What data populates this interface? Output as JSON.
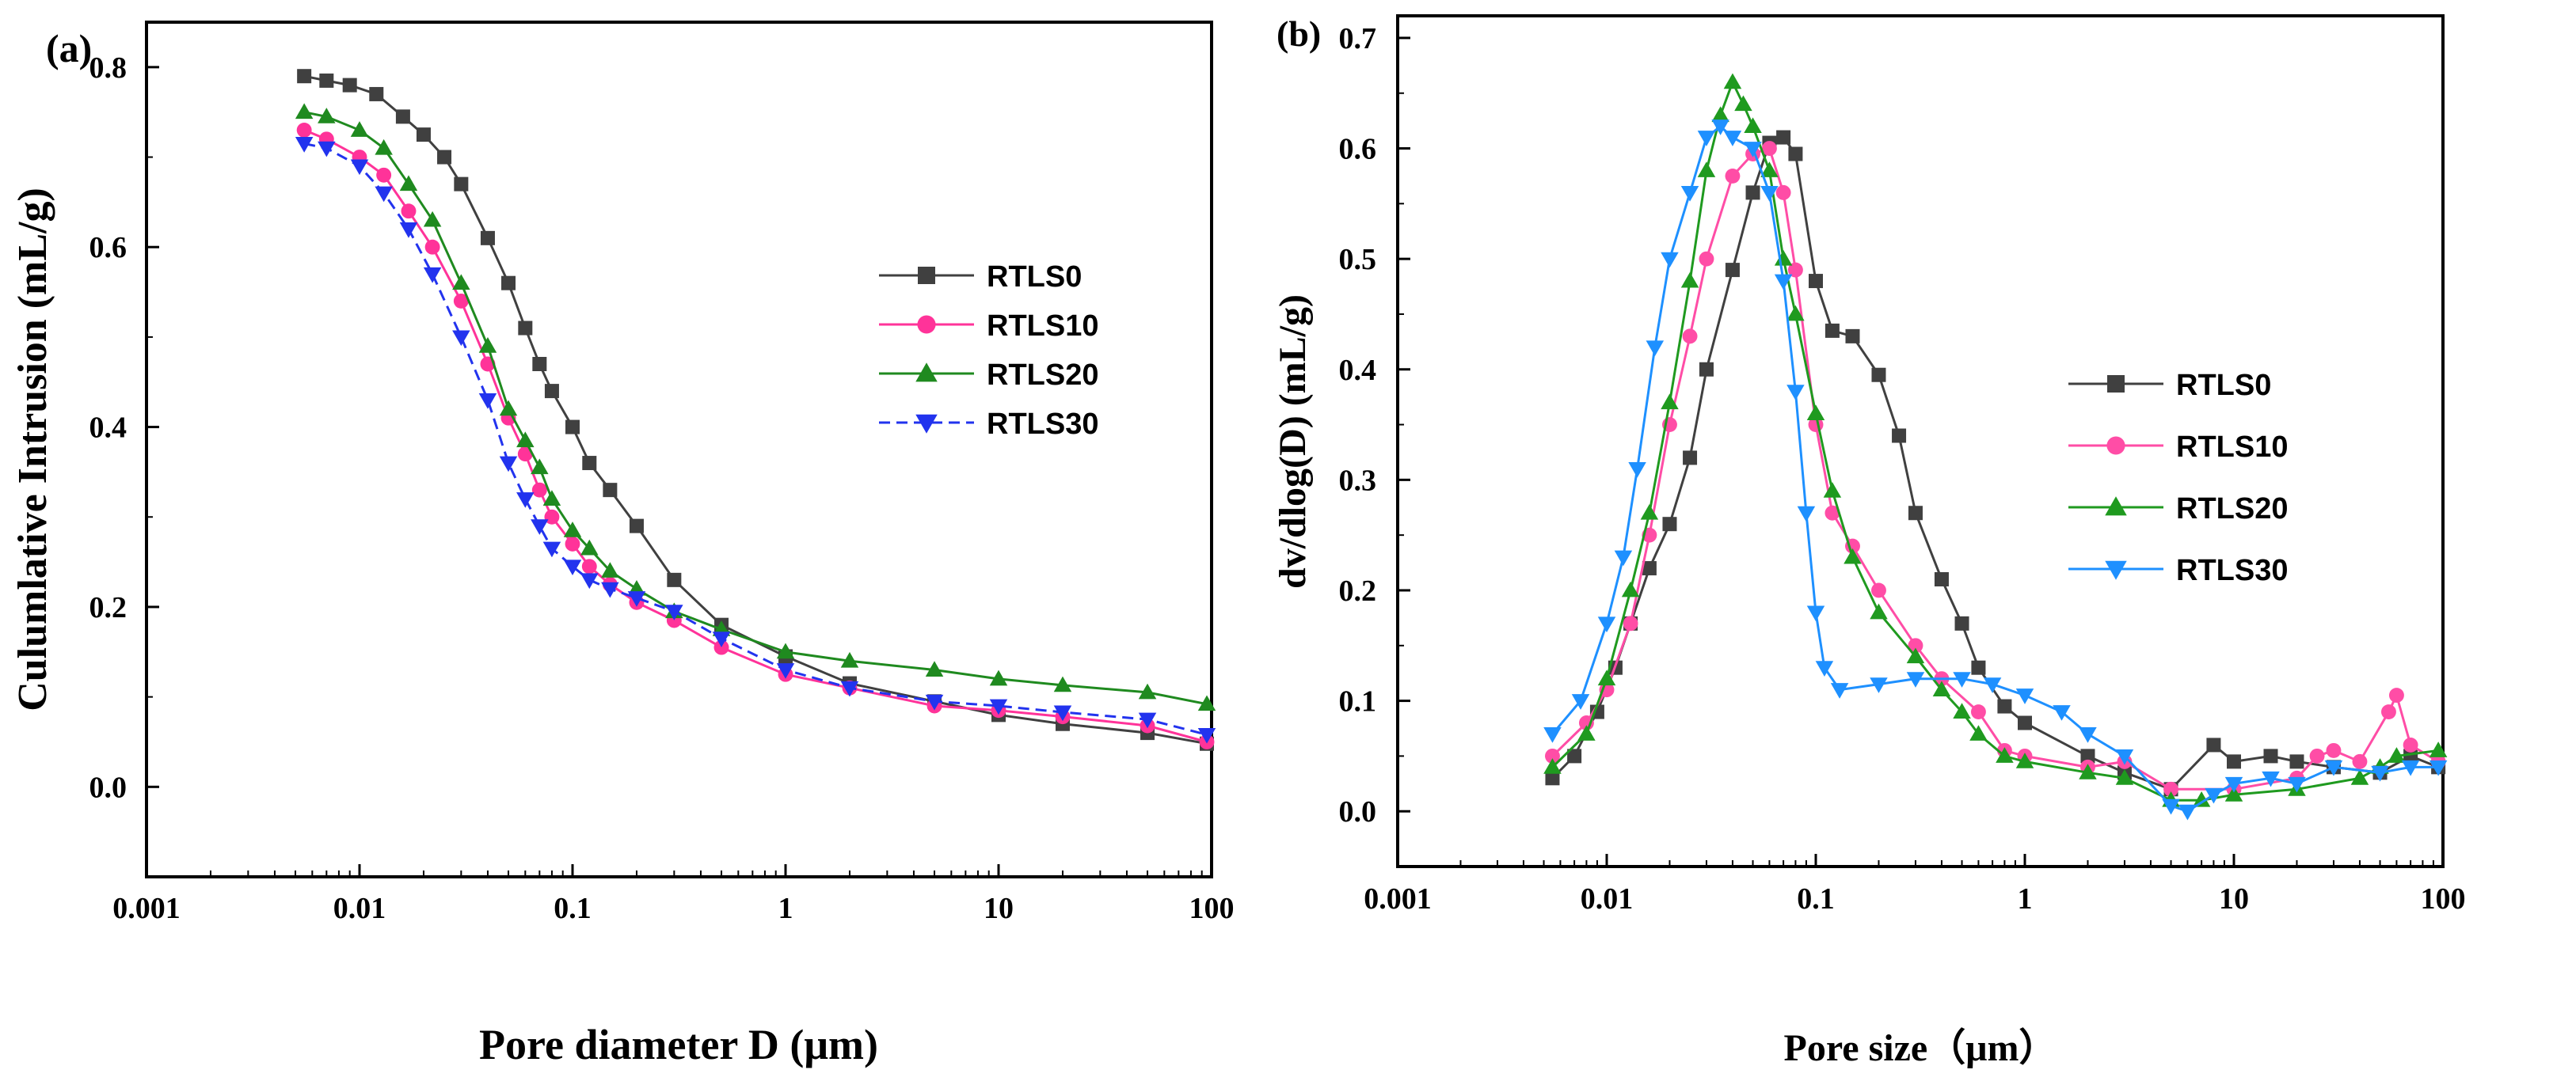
{
  "chart_data": [
    {
      "type": "line",
      "panel_label": "(a)",
      "xlabel": "Pore diameter D (μm)",
      "ylabel": "Culumlative Intrusion (mL/g)",
      "xscale": "log",
      "xlim": [
        0.001,
        100
      ],
      "ylim": [
        -0.1,
        0.85
      ],
      "xticks": [
        0.001,
        0.01,
        0.1,
        1,
        10,
        100
      ],
      "xtick_labels": [
        "0.001",
        "0.01",
        "0.1",
        "1",
        "10",
        "100"
      ],
      "yticks": [
        0.0,
        0.2,
        0.4,
        0.6,
        0.8
      ],
      "ytick_labels": [
        "0.0",
        "0.2",
        "0.4",
        "0.6",
        "0.8"
      ],
      "legend_position": "center-right",
      "series": [
        {
          "name": "RTLS0",
          "color": "#404040",
          "marker": "square",
          "dashed": false,
          "points": [
            [
              0.0055,
              0.79
            ],
            [
              0.007,
              0.785
            ],
            [
              0.009,
              0.78
            ],
            [
              0.012,
              0.77
            ],
            [
              0.016,
              0.745
            ],
            [
              0.02,
              0.725
            ],
            [
              0.025,
              0.7
            ],
            [
              0.03,
              0.67
            ],
            [
              0.04,
              0.61
            ],
            [
              0.05,
              0.56
            ],
            [
              0.06,
              0.51
            ],
            [
              0.07,
              0.47
            ],
            [
              0.08,
              0.44
            ],
            [
              0.1,
              0.4
            ],
            [
              0.12,
              0.36
            ],
            [
              0.15,
              0.33
            ],
            [
              0.2,
              0.29
            ],
            [
              0.3,
              0.23
            ],
            [
              0.5,
              0.18
            ],
            [
              1,
              0.145
            ],
            [
              2,
              0.115
            ],
            [
              5,
              0.095
            ],
            [
              10,
              0.08
            ],
            [
              20,
              0.07
            ],
            [
              50,
              0.06
            ],
            [
              95,
              0.048
            ]
          ]
        },
        {
          "name": "RTLS10",
          "color": "#ff3399",
          "marker": "circle",
          "dashed": false,
          "points": [
            [
              0.0055,
              0.73
            ],
            [
              0.007,
              0.72
            ],
            [
              0.01,
              0.7
            ],
            [
              0.013,
              0.68
            ],
            [
              0.017,
              0.64
            ],
            [
              0.022,
              0.6
            ],
            [
              0.03,
              0.54
            ],
            [
              0.04,
              0.47
            ],
            [
              0.05,
              0.41
            ],
            [
              0.06,
              0.37
            ],
            [
              0.07,
              0.33
            ],
            [
              0.08,
              0.3
            ],
            [
              0.1,
              0.27
            ],
            [
              0.12,
              0.245
            ],
            [
              0.15,
              0.225
            ],
            [
              0.2,
              0.205
            ],
            [
              0.3,
              0.185
            ],
            [
              0.5,
              0.155
            ],
            [
              1,
              0.125
            ],
            [
              2,
              0.11
            ],
            [
              5,
              0.09
            ],
            [
              10,
              0.085
            ],
            [
              20,
              0.078
            ],
            [
              50,
              0.068
            ],
            [
              95,
              0.05
            ]
          ]
        },
        {
          "name": "RTLS20",
          "color": "#1f8a1f",
          "marker": "triangle-up",
          "dashed": false,
          "points": [
            [
              0.0055,
              0.75
            ],
            [
              0.007,
              0.745
            ],
            [
              0.01,
              0.73
            ],
            [
              0.013,
              0.71
            ],
            [
              0.017,
              0.67
            ],
            [
              0.022,
              0.63
            ],
            [
              0.03,
              0.56
            ],
            [
              0.04,
              0.49
            ],
            [
              0.05,
              0.42
            ],
            [
              0.06,
              0.385
            ],
            [
              0.07,
              0.355
            ],
            [
              0.08,
              0.32
            ],
            [
              0.1,
              0.285
            ],
            [
              0.12,
              0.265
            ],
            [
              0.15,
              0.24
            ],
            [
              0.2,
              0.22
            ],
            [
              0.3,
              0.195
            ],
            [
              0.5,
              0.175
            ],
            [
              1,
              0.15
            ],
            [
              2,
              0.14
            ],
            [
              5,
              0.13
            ],
            [
              10,
              0.12
            ],
            [
              20,
              0.113
            ],
            [
              50,
              0.105
            ],
            [
              95,
              0.092
            ]
          ]
        },
        {
          "name": "RTLS30",
          "color": "#2233ee",
          "marker": "triangle-down",
          "dashed": true,
          "points": [
            [
              0.0055,
              0.715
            ],
            [
              0.007,
              0.71
            ],
            [
              0.01,
              0.69
            ],
            [
              0.013,
              0.66
            ],
            [
              0.017,
              0.62
            ],
            [
              0.022,
              0.57
            ],
            [
              0.03,
              0.5
            ],
            [
              0.04,
              0.43
            ],
            [
              0.05,
              0.36
            ],
            [
              0.06,
              0.32
            ],
            [
              0.07,
              0.29
            ],
            [
              0.08,
              0.265
            ],
            [
              0.1,
              0.245
            ],
            [
              0.12,
              0.23
            ],
            [
              0.15,
              0.22
            ],
            [
              0.2,
              0.21
            ],
            [
              0.3,
              0.195
            ],
            [
              0.5,
              0.165
            ],
            [
              1,
              0.13
            ],
            [
              2,
              0.11
            ],
            [
              5,
              0.095
            ],
            [
              10,
              0.09
            ],
            [
              20,
              0.083
            ],
            [
              50,
              0.075
            ],
            [
              95,
              0.058
            ]
          ]
        }
      ]
    },
    {
      "type": "line",
      "panel_label": "(b)",
      "xlabel": "Pore size（μm）",
      "ylabel": "dv/dlog(D) (mL/g)",
      "xscale": "log",
      "xlim": [
        0.001,
        100
      ],
      "ylim": [
        -0.05,
        0.72
      ],
      "xticks": [
        0.001,
        0.01,
        0.1,
        1,
        10,
        100
      ],
      "xtick_labels": [
        "0.001",
        "0.01",
        "0.1",
        "1",
        "10",
        "100"
      ],
      "yticks": [
        0.0,
        0.1,
        0.2,
        0.3,
        0.4,
        0.5,
        0.6,
        0.7
      ],
      "ytick_labels": [
        "0.0",
        "0.1",
        "0.2",
        "0.3",
        "0.4",
        "0.5",
        "0.6",
        "0.7"
      ],
      "legend_position": "center-right",
      "series": [
        {
          "name": "RTLS0",
          "color": "#404040",
          "marker": "square",
          "points": [
            [
              0.0055,
              0.03
            ],
            [
              0.007,
              0.05
            ],
            [
              0.009,
              0.09
            ],
            [
              0.011,
              0.13
            ],
            [
              0.013,
              0.17
            ],
            [
              0.016,
              0.22
            ],
            [
              0.02,
              0.26
            ],
            [
              0.025,
              0.32
            ],
            [
              0.03,
              0.4
            ],
            [
              0.04,
              0.49
            ],
            [
              0.05,
              0.56
            ],
            [
              0.06,
              0.605
            ],
            [
              0.07,
              0.61
            ],
            [
              0.08,
              0.595
            ],
            [
              0.1,
              0.48
            ],
            [
              0.12,
              0.435
            ],
            [
              0.15,
              0.43
            ],
            [
              0.2,
              0.395
            ],
            [
              0.25,
              0.34
            ],
            [
              0.3,
              0.27
            ],
            [
              0.4,
              0.21
            ],
            [
              0.5,
              0.17
            ],
            [
              0.6,
              0.13
            ],
            [
              0.8,
              0.095
            ],
            [
              1,
              0.08
            ],
            [
              2,
              0.05
            ],
            [
              3,
              0.035
            ],
            [
              5,
              0.02
            ],
            [
              8,
              0.06
            ],
            [
              10,
              0.045
            ],
            [
              15,
              0.05
            ],
            [
              20,
              0.045
            ],
            [
              30,
              0.04
            ],
            [
              50,
              0.035
            ],
            [
              70,
              0.05
            ],
            [
              95,
              0.04
            ]
          ]
        },
        {
          "name": "RTLS10",
          "color": "#ff4da6",
          "marker": "circle",
          "points": [
            [
              0.0055,
              0.05
            ],
            [
              0.008,
              0.08
            ],
            [
              0.01,
              0.11
            ],
            [
              0.013,
              0.17
            ],
            [
              0.016,
              0.25
            ],
            [
              0.02,
              0.35
            ],
            [
              0.025,
              0.43
            ],
            [
              0.03,
              0.5
            ],
            [
              0.04,
              0.575
            ],
            [
              0.05,
              0.595
            ],
            [
              0.06,
              0.6
            ],
            [
              0.07,
              0.56
            ],
            [
              0.08,
              0.49
            ],
            [
              0.1,
              0.35
            ],
            [
              0.12,
              0.27
            ],
            [
              0.15,
              0.24
            ],
            [
              0.2,
              0.2
            ],
            [
              0.3,
              0.15
            ],
            [
              0.4,
              0.12
            ],
            [
              0.6,
              0.09
            ],
            [
              0.8,
              0.055
            ],
            [
              1,
              0.05
            ],
            [
              2,
              0.04
            ],
            [
              3,
              0.045
            ],
            [
              5,
              0.02
            ],
            [
              10,
              0.02
            ],
            [
              20,
              0.03
            ],
            [
              25,
              0.05
            ],
            [
              30,
              0.055
            ],
            [
              40,
              0.045
            ],
            [
              55,
              0.09
            ],
            [
              60,
              0.105
            ],
            [
              70,
              0.06
            ],
            [
              95,
              0.045
            ]
          ]
        },
        {
          "name": "RTLS20",
          "color": "#1f9a1f",
          "marker": "triangle-up",
          "points": [
            [
              0.0055,
              0.04
            ],
            [
              0.008,
              0.07
            ],
            [
              0.01,
              0.12
            ],
            [
              0.013,
              0.2
            ],
            [
              0.016,
              0.27
            ],
            [
              0.02,
              0.37
            ],
            [
              0.025,
              0.48
            ],
            [
              0.03,
              0.58
            ],
            [
              0.035,
              0.63
            ],
            [
              0.04,
              0.66
            ],
            [
              0.045,
              0.64
            ],
            [
              0.05,
              0.62
            ],
            [
              0.06,
              0.58
            ],
            [
              0.07,
              0.5
            ],
            [
              0.08,
              0.45
            ],
            [
              0.1,
              0.36
            ],
            [
              0.12,
              0.29
            ],
            [
              0.15,
              0.23
            ],
            [
              0.2,
              0.18
            ],
            [
              0.3,
              0.14
            ],
            [
              0.4,
              0.11
            ],
            [
              0.5,
              0.09
            ],
            [
              0.6,
              0.07
            ],
            [
              0.8,
              0.05
            ],
            [
              1,
              0.045
            ],
            [
              2,
              0.035
            ],
            [
              3,
              0.03
            ],
            [
              5,
              0.01
            ],
            [
              7,
              0.01
            ],
            [
              10,
              0.015
            ],
            [
              20,
              0.02
            ],
            [
              40,
              0.03
            ],
            [
              50,
              0.04
            ],
            [
              60,
              0.05
            ],
            [
              95,
              0.055
            ]
          ]
        },
        {
          "name": "RTLS30",
          "color": "#1e90ff",
          "marker": "triangle-down",
          "points": [
            [
              0.0055,
              0.07
            ],
            [
              0.0075,
              0.1
            ],
            [
              0.01,
              0.17
            ],
            [
              0.012,
              0.23
            ],
            [
              0.014,
              0.31
            ],
            [
              0.017,
              0.42
            ],
            [
              0.02,
              0.5
            ],
            [
              0.025,
              0.56
            ],
            [
              0.03,
              0.61
            ],
            [
              0.035,
              0.62
            ],
            [
              0.04,
              0.61
            ],
            [
              0.05,
              0.6
            ],
            [
              0.06,
              0.56
            ],
            [
              0.07,
              0.48
            ],
            [
              0.08,
              0.38
            ],
            [
              0.09,
              0.27
            ],
            [
              0.1,
              0.18
            ],
            [
              0.11,
              0.13
            ],
            [
              0.13,
              0.11
            ],
            [
              0.2,
              0.115
            ],
            [
              0.3,
              0.12
            ],
            [
              0.5,
              0.12
            ],
            [
              0.7,
              0.115
            ],
            [
              1,
              0.105
            ],
            [
              1.5,
              0.09
            ],
            [
              2,
              0.07
            ],
            [
              3,
              0.05
            ],
            [
              5,
              0.005
            ],
            [
              6,
              0.0
            ],
            [
              8,
              0.015
            ],
            [
              10,
              0.025
            ],
            [
              15,
              0.03
            ],
            [
              20,
              0.025
            ],
            [
              30,
              0.04
            ],
            [
              50,
              0.035
            ],
            [
              70,
              0.04
            ],
            [
              95,
              0.04
            ]
          ]
        }
      ]
    }
  ]
}
